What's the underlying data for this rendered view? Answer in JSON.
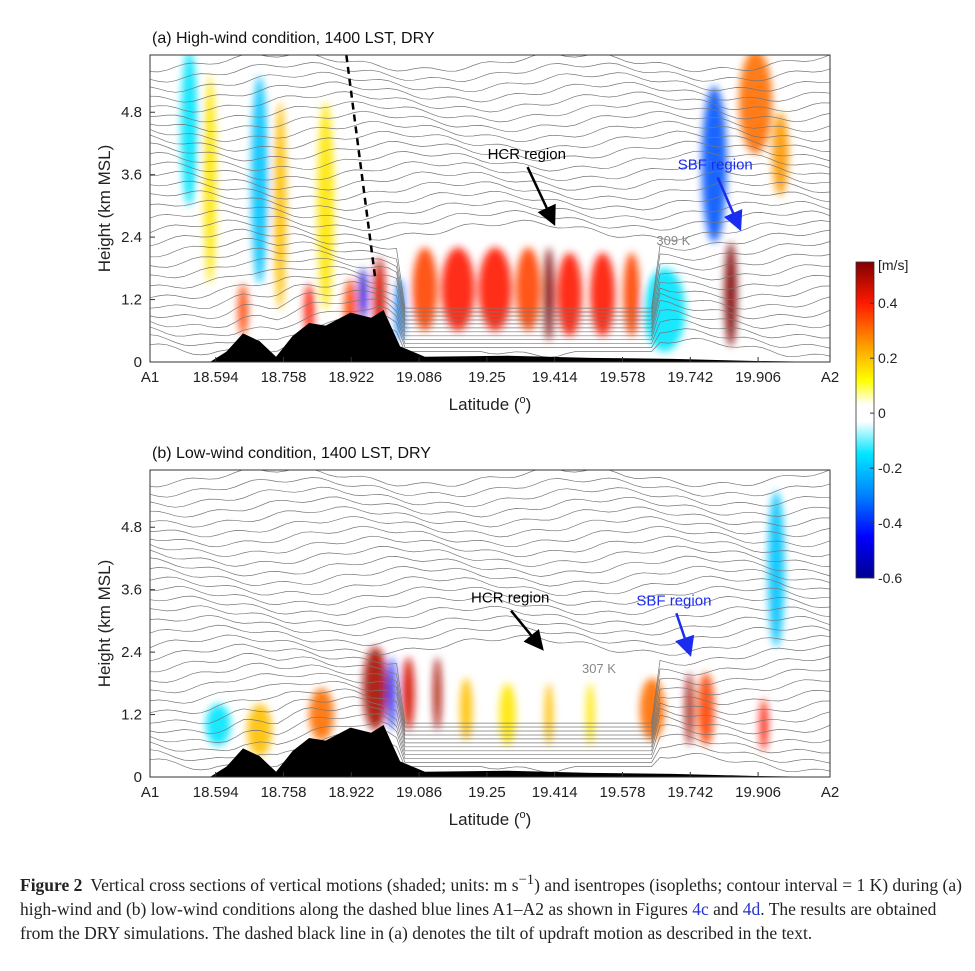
{
  "chart_data": [
    {
      "type": "heatmap",
      "title": "(a) High-wind condition, 1400 LST, DRY",
      "xlabel": "Latitude (",
      "xlabel_sup": "o",
      "xlabel_end": ")",
      "ylabel": "Height (km MSL)",
      "xlim": [
        18.435,
        20.08
      ],
      "ylim": [
        0,
        5.9
      ],
      "xticks": [
        18.435,
        18.594,
        18.758,
        18.922,
        19.086,
        19.25,
        19.414,
        19.578,
        19.742,
        19.906,
        20.08
      ],
      "xticklabels": [
        "A1",
        "18.594",
        "18.758",
        "18.922",
        "19.086",
        "19.25",
        "19.414",
        "19.578",
        "19.742",
        "19.906",
        "A2"
      ],
      "yticks": [
        0,
        1.2,
        2.4,
        3.6,
        4.8
      ],
      "yticklabels": [
        "0",
        "1.2",
        "2.4",
        "3.6",
        "4.8"
      ],
      "isentrope_label": {
        "text": "309 K",
        "lat": 19.66,
        "z": 2.25
      },
      "annotations": [
        {
          "text": "HCR region",
          "lat": 19.3,
          "z": 3.9,
          "arrow_to": [
            19.41,
            2.7
          ],
          "color": "#000000"
        },
        {
          "text": "SBF region",
          "lat": 19.76,
          "z": 3.7,
          "arrow_to": [
            19.86,
            2.6
          ],
          "color": "#1a2cf0"
        }
      ],
      "tilt_line": {
        "from": [
          18.91,
          5.9
        ],
        "to": [
          18.98,
          1.6
        ]
      },
      "terrain": [
        [
          18.435,
          0
        ],
        [
          18.58,
          0
        ],
        [
          18.62,
          0.2
        ],
        [
          18.66,
          0.55
        ],
        [
          18.7,
          0.4
        ],
        [
          18.74,
          0.1
        ],
        [
          18.78,
          0.5
        ],
        [
          18.82,
          0.75
        ],
        [
          18.86,
          0.7
        ],
        [
          18.92,
          0.95
        ],
        [
          18.97,
          0.85
        ],
        [
          19.0,
          1.0
        ],
        [
          19.04,
          0.3
        ],
        [
          19.1,
          0.1
        ],
        [
          19.3,
          0.12
        ],
        [
          19.5,
          0.08
        ],
        [
          19.7,
          0.06
        ],
        [
          19.9,
          0.02
        ],
        [
          20.08,
          0
        ]
      ],
      "w_features": [
        [
          18.53,
          4.5,
          0.02,
          1.5,
          -0.15
        ],
        [
          18.58,
          3.5,
          0.015,
          2,
          0.15
        ],
        [
          18.66,
          1.0,
          0.012,
          0.5,
          0.35
        ],
        [
          18.7,
          3.5,
          0.02,
          2,
          -0.2
        ],
        [
          18.75,
          3,
          0.015,
          2,
          0.2
        ],
        [
          18.82,
          1.0,
          0.012,
          0.5,
          0.4
        ],
        [
          18.86,
          3,
          0.02,
          2,
          0.15
        ],
        [
          18.92,
          1.0,
          0.015,
          0.6,
          0.35
        ],
        [
          18.95,
          1.3,
          0.01,
          0.5,
          -0.5
        ],
        [
          18.99,
          1.2,
          0.015,
          0.8,
          0.45
        ],
        [
          19.04,
          1.0,
          0.012,
          0.6,
          -0.3
        ],
        [
          19.1,
          1.4,
          0.03,
          0.8,
          0.35
        ],
        [
          19.18,
          1.4,
          0.04,
          0.8,
          0.4
        ],
        [
          19.27,
          1.4,
          0.04,
          0.8,
          0.4
        ],
        [
          19.35,
          1.4,
          0.03,
          0.8,
          0.35
        ],
        [
          19.4,
          1.3,
          0.012,
          0.9,
          0.55
        ],
        [
          19.45,
          1.3,
          0.03,
          0.8,
          0.4
        ],
        [
          19.53,
          1.3,
          0.03,
          0.8,
          0.4
        ],
        [
          19.6,
          1.3,
          0.02,
          0.8,
          0.35
        ],
        [
          19.68,
          1.0,
          0.05,
          0.8,
          -0.15
        ],
        [
          19.8,
          3.8,
          0.03,
          1.5,
          -0.35
        ],
        [
          19.84,
          1.3,
          0.015,
          1,
          0.55
        ],
        [
          19.9,
          5.0,
          0.04,
          1,
          0.3
        ],
        [
          19.96,
          4,
          0.02,
          0.8,
          0.25
        ]
      ]
    },
    {
      "type": "heatmap",
      "title": "(b) Low-wind condition, 1400 LST, DRY",
      "xlabel": "Latitude (",
      "xlabel_sup": "o",
      "xlabel_end": ")",
      "ylabel": "Height (km MSL)",
      "xlim": [
        18.435,
        20.08
      ],
      "ylim": [
        0,
        5.9
      ],
      "xticks": [
        18.435,
        18.594,
        18.758,
        18.922,
        19.086,
        19.25,
        19.414,
        19.578,
        19.742,
        19.906,
        20.08
      ],
      "xticklabels": [
        "A1",
        "18.594",
        "18.758",
        "18.922",
        "19.086",
        "19.25",
        "19.414",
        "19.578",
        "19.742",
        "19.906",
        "A2"
      ],
      "yticks": [
        0,
        1.2,
        2.4,
        3.6,
        4.8
      ],
      "yticklabels": [
        "0",
        "1.2",
        "2.4",
        "3.6",
        "4.8"
      ],
      "isentrope_label": {
        "text": "307 K",
        "lat": 19.48,
        "z": 2.0
      },
      "annotations": [
        {
          "text": "HCR region",
          "lat": 19.26,
          "z": 3.35,
          "arrow_to": [
            19.38,
            2.5
          ],
          "color": "#000000"
        },
        {
          "text": "SBF region",
          "lat": 19.66,
          "z": 3.3,
          "arrow_to": [
            19.74,
            2.4
          ],
          "color": "#1a2cf0"
        }
      ],
      "terrain": [
        [
          18.435,
          0
        ],
        [
          18.58,
          0
        ],
        [
          18.62,
          0.2
        ],
        [
          18.66,
          0.55
        ],
        [
          18.7,
          0.4
        ],
        [
          18.74,
          0.1
        ],
        [
          18.78,
          0.5
        ],
        [
          18.82,
          0.75
        ],
        [
          18.86,
          0.7
        ],
        [
          18.92,
          0.95
        ],
        [
          18.97,
          0.85
        ],
        [
          19.0,
          1.0
        ],
        [
          19.04,
          0.3
        ],
        [
          19.1,
          0.1
        ],
        [
          19.3,
          0.12
        ],
        [
          19.5,
          0.08
        ],
        [
          19.7,
          0.06
        ],
        [
          19.9,
          0.02
        ],
        [
          20.08,
          0
        ]
      ],
      "w_features": [
        [
          18.6,
          1.0,
          0.03,
          0.4,
          -0.15
        ],
        [
          18.7,
          0.9,
          0.03,
          0.5,
          0.2
        ],
        [
          18.85,
          1.2,
          0.03,
          0.5,
          0.3
        ],
        [
          18.98,
          1.7,
          0.03,
          0.8,
          0.5
        ],
        [
          19.02,
          1.6,
          0.01,
          0.7,
          -0.4
        ],
        [
          19.06,
          1.6,
          0.015,
          0.7,
          0.45
        ],
        [
          19.13,
          1.6,
          0.01,
          0.7,
          0.5
        ],
        [
          19.2,
          1.3,
          0.015,
          0.6,
          0.2
        ],
        [
          19.3,
          1.2,
          0.02,
          0.6,
          0.15
        ],
        [
          19.4,
          1.2,
          0.01,
          0.6,
          0.2
        ],
        [
          19.5,
          1.2,
          0.01,
          0.6,
          0.15
        ],
        [
          19.65,
          1.3,
          0.03,
          0.6,
          0.3
        ],
        [
          19.74,
          1.3,
          0.01,
          0.7,
          0.5
        ],
        [
          19.78,
          1.3,
          0.02,
          0.7,
          0.35
        ],
        [
          19.92,
          1.0,
          0.01,
          0.5,
          0.4
        ],
        [
          19.95,
          4,
          0.02,
          1.5,
          -0.2
        ]
      ]
    }
  ],
  "colorbar": {
    "unit": "[m/s]",
    "range": [
      -0.6,
      0.55
    ],
    "ticks": [
      0.4,
      0.2,
      0,
      -0.2,
      -0.4,
      -0.6
    ],
    "ticklabels": [
      "0.4",
      "0.2",
      "0",
      "-0.2",
      "-0.4",
      "-0.6"
    ],
    "stops": [
      [
        -0.6,
        "#00008f"
      ],
      [
        -0.45,
        "#0000ff"
      ],
      [
        -0.3,
        "#0080ff"
      ],
      [
        -0.15,
        "#00e5ff"
      ],
      [
        -0.03,
        "#ffffff"
      ],
      [
        0.03,
        "#ffffff"
      ],
      [
        0.12,
        "#ffff00"
      ],
      [
        0.25,
        "#ff9900"
      ],
      [
        0.4,
        "#ff1a00"
      ],
      [
        0.55,
        "#800000"
      ]
    ]
  },
  "caption": {
    "label": "Figure 2",
    "text1": "Vertical cross sections of vertical motions (shaded; units: m s",
    "sup": "−1",
    "text2": ") and isentropes (isopleths; contour interval = 1 K) during (a) high-wind and (b) low-wind conditions along the dashed blue lines A1–A2 as shown in Figures ",
    "link1": "4c",
    "text3": " and ",
    "link2": "4d",
    "text4": ". The results are obtained from the DRY simulations. The dashed black line in (a) denotes the tilt of updraft motion as described in the text."
  }
}
